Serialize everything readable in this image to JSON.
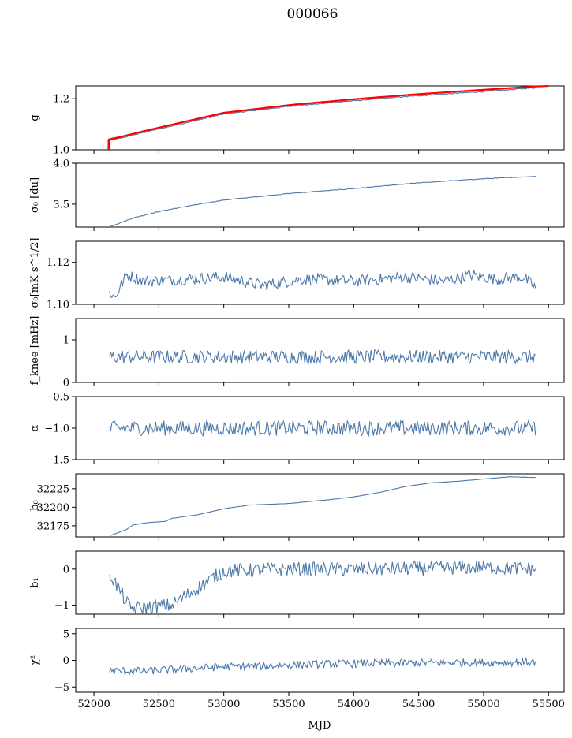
{
  "figure": {
    "title": "000066",
    "xlabel": "MJD",
    "colors": {
      "series": "#4c78a8",
      "reference": "#ff0000"
    }
  },
  "chart_data": [
    {
      "type": "line",
      "ylabel": "g",
      "xlim": [
        51860,
        55620
      ],
      "ylim": [
        1.0,
        1.25
      ],
      "yticks": [
        1.0,
        1.2
      ],
      "ytick_labels": [
        "1.0",
        "1.2"
      ],
      "series": [
        {
          "color": "#4c78a8",
          "x": [
            52110,
            52200,
            52400,
            52700,
            53000,
            53500,
            54000,
            54500,
            55000,
            55400
          ],
          "y": [
            1.035,
            1.045,
            1.07,
            1.105,
            1.14,
            1.17,
            1.192,
            1.212,
            1.228,
            1.243
          ]
        },
        {
          "color": "#ff0000",
          "x": [
            52110,
            52200,
            52400,
            52700,
            53000,
            53500,
            54000,
            54500,
            55000,
            55400,
            55500
          ],
          "y": [
            1.04,
            1.05,
            1.075,
            1.11,
            1.145,
            1.175,
            1.198,
            1.218,
            1.235,
            1.248,
            1.25
          ]
        }
      ],
      "annotations": [
        {
          "type": "vertical-segment",
          "color": "#ff0000",
          "x": 52115,
          "y": [
            1.0,
            1.04
          ]
        }
      ]
    },
    {
      "type": "line",
      "ylabel": "σ₀ [du]",
      "xlim": [
        51860,
        55620
      ],
      "ylim": [
        3.22,
        4.0
      ],
      "yticks": [
        3.5,
        4.0
      ],
      "ytick_labels": [
        "3.5",
        "4.0"
      ],
      "series": [
        {
          "color": "#4c78a8",
          "x": [
            52130,
            52300,
            52500,
            52700,
            53000,
            53500,
            54000,
            54500,
            55000,
            55400
          ],
          "y": [
            3.23,
            3.33,
            3.41,
            3.47,
            3.55,
            3.63,
            3.69,
            3.76,
            3.81,
            3.84
          ]
        }
      ]
    },
    {
      "type": "line",
      "ylabel": "σ₀[mK s^1/2]",
      "xlim": [
        51860,
        55620
      ],
      "ylim": [
        1.1,
        1.13
      ],
      "yticks": [
        1.1,
        1.12
      ],
      "ytick_labels": [
        "1.10",
        "1.12"
      ],
      "series": [
        {
          "color": "#4c78a8",
          "x": [
            52120,
            52160,
            52250,
            52400,
            52700,
            53000,
            53300,
            53600,
            54000,
            54400,
            54700,
            54900,
            55100,
            55300,
            55400
          ],
          "y": [
            1.106,
            1.103,
            1.114,
            1.111,
            1.112,
            1.113,
            1.109,
            1.112,
            1.111,
            1.113,
            1.111,
            1.114,
            1.112,
            1.113,
            1.108
          ]
        }
      ]
    },
    {
      "type": "line",
      "ylabel": "f_knee [mHz]",
      "xlim": [
        51860,
        55620
      ],
      "ylim": [
        0,
        1.5
      ],
      "yticks": [
        0,
        1
      ],
      "ytick_labels": [
        "0",
        "1"
      ],
      "series": [
        {
          "color": "#4c78a8",
          "x": [
            52120,
            52500,
            52900,
            53300,
            53700,
            54100,
            54500,
            54900,
            55400
          ],
          "y": [
            0.6,
            0.6,
            0.6,
            0.6,
            0.6,
            0.6,
            0.6,
            0.6,
            0.6
          ]
        }
      ]
    },
    {
      "type": "line",
      "ylabel": "α",
      "xlim": [
        51860,
        55620
      ],
      "ylim": [
        -1.5,
        -0.5
      ],
      "yticks": [
        -1.5,
        -1.0,
        -0.5
      ],
      "ytick_labels": [
        "−1.5",
        "−1.0",
        "−0.5"
      ],
      "series": [
        {
          "color": "#4c78a8",
          "x": [
            52120,
            52500,
            52900,
            53300,
            53700,
            54100,
            54500,
            54900,
            55400
          ],
          "y": [
            -1.0,
            -1.0,
            -1.0,
            -1.0,
            -1.0,
            -1.0,
            -1.0,
            -1.0,
            -1.0
          ]
        }
      ]
    },
    {
      "type": "line",
      "ylabel": "b₀",
      "xlim": [
        51860,
        55620
      ],
      "ylim": [
        32160,
        32245
      ],
      "yticks": [
        32175,
        32200,
        32225
      ],
      "ytick_labels": [
        "32175",
        "32200",
        "32225"
      ],
      "series": [
        {
          "color": "#4c78a8",
          "x": [
            52130,
            52250,
            52300,
            52400,
            52550,
            52600,
            52800,
            53000,
            53200,
            53500,
            53800,
            54000,
            54200,
            54400,
            54600,
            54800,
            55000,
            55200,
            55400
          ],
          "y": [
            32162,
            32170,
            32176,
            32179,
            32181,
            32185,
            32190,
            32198,
            32203,
            32205,
            32210,
            32214,
            32220,
            32228,
            32233,
            32235,
            32238,
            32241,
            32240
          ]
        }
      ]
    },
    {
      "type": "line",
      "ylabel": "b₁",
      "xlim": [
        51860,
        55620
      ],
      "ylim": [
        -1.25,
        0.5
      ],
      "yticks": [
        -1,
        0
      ],
      "ytick_labels": [
        "−1",
        "0"
      ],
      "series": [
        {
          "color": "#4c78a8",
          "x": [
            52120,
            52280,
            52595,
            53000,
            53500,
            54000,
            54500,
            55000,
            55400
          ],
          "y": [
            -0.1,
            -1.1,
            -1.0,
            -0.05,
            0.0,
            0.0,
            0.02,
            0.05,
            0.0
          ]
        }
      ]
    },
    {
      "type": "line",
      "ylabel": "χ²",
      "xlim": [
        51860,
        55620
      ],
      "ylim": [
        -6,
        6
      ],
      "yticks": [
        -5,
        0,
        5
      ],
      "ytick_labels": [
        "−5",
        "0",
        "5"
      ],
      "series": [
        {
          "color": "#4c78a8",
          "x": [
            52120,
            52400,
            52700,
            53000,
            53300,
            53600,
            54000,
            54400,
            54800,
            55100,
            55400
          ],
          "y": [
            -2.0,
            -2.0,
            -1.6,
            -1.2,
            -1.1,
            -0.8,
            -0.6,
            -0.5,
            -0.4,
            -0.4,
            -0.3
          ]
        }
      ]
    }
  ],
  "xaxis": {
    "ticks": [
      52000,
      52500,
      53000,
      53500,
      54000,
      54500,
      55000,
      55500
    ],
    "tick_labels": [
      "52000",
      "52500",
      "53000",
      "53500",
      "54000",
      "54500",
      "55000",
      "55500"
    ]
  }
}
